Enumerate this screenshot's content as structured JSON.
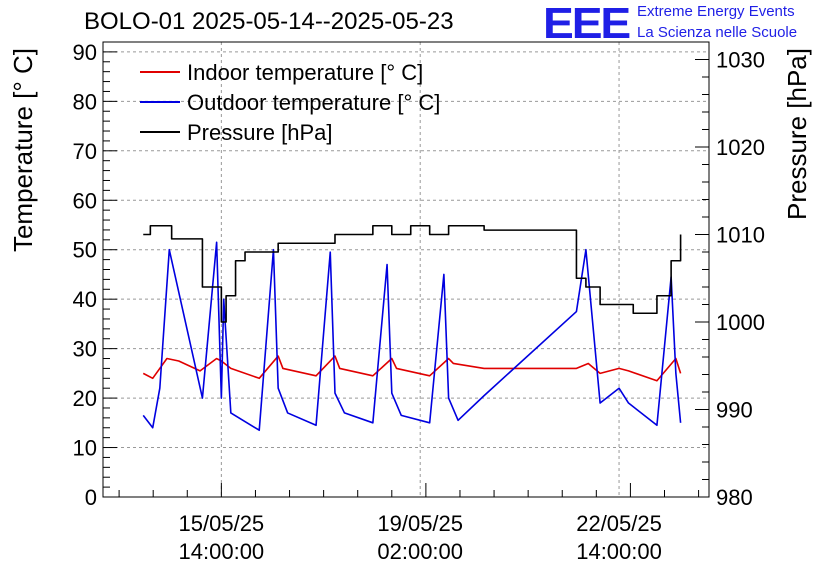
{
  "title": "BOLO-01 2025-05-14--2025-05-23",
  "logo": {
    "mark": "EEE",
    "line1": "Extreme Energy Events",
    "line2": "La Scienza nelle Scuole",
    "color": "#1f1fe6"
  },
  "chart_data": {
    "type": "line",
    "title": "BOLO-01 2025-05-14--2025-05-23",
    "ylabel": "Temperature [° C]",
    "y2label": "Pressure [hPa]",
    "ylim": [
      0,
      92
    ],
    "y2lim": [
      980,
      1032
    ],
    "yticks": [
      "0",
      "10",
      "20",
      "30",
      "40",
      "50",
      "60",
      "70",
      "80",
      "90"
    ],
    "y2ticks": [
      "980",
      "990",
      "1000",
      "1010",
      "1020",
      "1030"
    ],
    "xticks": [
      {
        "date": "15/05/25",
        "time": "14:00:00"
      },
      {
        "date": "19/05/25",
        "time": "02:00:00"
      },
      {
        "date": "22/05/25",
        "time": "14:00:00"
      }
    ],
    "grid": true,
    "legend": "top-left",
    "series": [
      {
        "name": "Indoor temperature [° C]",
        "axis": "left",
        "color": "#e00000",
        "x": [
          "2025-05-14 05:00",
          "2025-05-14 09:00",
          "2025-05-14 15:00",
          "2025-05-14 20:00",
          "2025-05-15 05:00",
          "2025-05-15 12:00",
          "2025-05-15 14:00",
          "2025-05-15 18:00",
          "2025-05-16 06:00",
          "2025-05-16 14:00",
          "2025-05-16 16:00",
          "2025-05-17 06:00",
          "2025-05-17 14:00",
          "2025-05-17 16:00",
          "2025-05-18 06:00",
          "2025-05-18 14:00",
          "2025-05-18 16:00",
          "2025-05-19 06:00",
          "2025-05-19 14:00",
          "2025-05-19 16:00",
          "2025-05-20 05:00",
          "2025-05-21 20:00",
          "2025-05-22 01:00",
          "2025-05-22 06:00",
          "2025-05-22 14:00",
          "2025-05-22 18:00",
          "2025-05-23 06:00",
          "2025-05-23 14:00",
          "2025-05-23 16:00"
        ],
        "y": [
          25,
          24,
          28,
          27.5,
          25.5,
          28,
          27.5,
          26,
          24,
          28.5,
          26,
          24.5,
          28.5,
          26,
          24.5,
          28,
          26,
          24.5,
          28,
          27,
          26,
          26,
          27,
          25,
          26,
          25.5,
          23.5,
          28,
          25
        ]
      },
      {
        "name": "Outdoor temperature [° C]",
        "axis": "left",
        "color": "#0000e0",
        "x": [
          "2025-05-14 05:00",
          "2025-05-14 09:00",
          "2025-05-14 12:00",
          "2025-05-14 16:00",
          "2025-05-15 06:00",
          "2025-05-15 12:00",
          "2025-05-15 14:00",
          "2025-05-15 15:00",
          "2025-05-15 18:00",
          "2025-05-16 06:00",
          "2025-05-16 12:00",
          "2025-05-16 14:00",
          "2025-05-16 18:00",
          "2025-05-17 06:00",
          "2025-05-17 12:00",
          "2025-05-17 14:00",
          "2025-05-17 18:00",
          "2025-05-18 06:00",
          "2025-05-18 12:00",
          "2025-05-18 14:00",
          "2025-05-18 18:00",
          "2025-05-19 06:00",
          "2025-05-19 12:00",
          "2025-05-19 14:00",
          "2025-05-19 18:00",
          "2025-05-20 05:00",
          "2025-05-21 20:00",
          "2025-05-22 00:00",
          "2025-05-22 06:00",
          "2025-05-22 14:00",
          "2025-05-22 18:00",
          "2025-05-23 06:00",
          "2025-05-23 12:00",
          "2025-05-23 14:00",
          "2025-05-23 16:00"
        ],
        "y": [
          16.5,
          14,
          22,
          50,
          20,
          51.5,
          20,
          40,
          17,
          13.5,
          50,
          22,
          17,
          14.5,
          49.5,
          21,
          17,
          15,
          47,
          21,
          16.5,
          15,
          45,
          20,
          15.5,
          20.5,
          37.5,
          50,
          19,
          22,
          19,
          14.5,
          44.5,
          25,
          15
        ]
      },
      {
        "name": "Pressure [hPa]",
        "axis": "right",
        "color": "#000000",
        "x": [
          "2025-05-14 05:00",
          "2025-05-14 08:00",
          "2025-05-14 14:00",
          "2025-05-14 17:00",
          "2025-05-15 06:00",
          "2025-05-15 14:00",
          "2025-05-15 16:00",
          "2025-05-15 20:00",
          "2025-05-16 00:00",
          "2025-05-16 06:00",
          "2025-05-16 14:00",
          "2025-05-16 22:00",
          "2025-05-17 06:00",
          "2025-05-17 14:00",
          "2025-05-17 22:00",
          "2025-05-18 06:00",
          "2025-05-18 14:00",
          "2025-05-18 22:00",
          "2025-05-19 06:00",
          "2025-05-19 14:00",
          "2025-05-19 22:00",
          "2025-05-20 05:00",
          "2025-05-21 20:00",
          "2025-05-22 00:00",
          "2025-05-22 06:00",
          "2025-05-22 12:00",
          "2025-05-22 20:00",
          "2025-05-23 06:00",
          "2025-05-23 12:00",
          "2025-05-23 16:00"
        ],
        "y": [
          1010,
          1011,
          1011,
          1009.5,
          1004,
          1000,
          1003,
          1007,
          1008,
          1008,
          1009,
          1009,
          1009,
          1010,
          1010,
          1011,
          1010,
          1011,
          1010,
          1011,
          1011,
          1010.5,
          1005,
          1004,
          1002,
          1002,
          1001,
          1003,
          1007,
          1010
        ]
      }
    ]
  }
}
